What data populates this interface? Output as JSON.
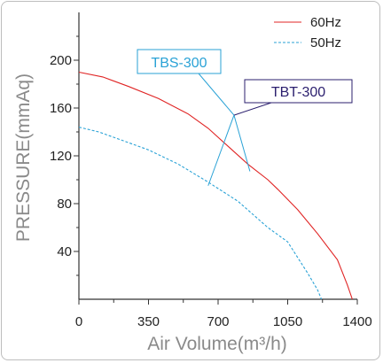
{
  "chart_data": {
    "type": "line",
    "xlabel": "Air Volume(m³/h)",
    "ylabel": "PRESSURE(mmAq)",
    "xlim": [
      0,
      1400
    ],
    "ylim": [
      0,
      240
    ],
    "x_ticks": [
      0,
      350,
      700,
      1050,
      1400
    ],
    "y_ticks": [
      40,
      80,
      120,
      160,
      200
    ],
    "legend_position": "top-right",
    "series": [
      {
        "name": "60Hz",
        "color": "#e02424",
        "style": "solid",
        "points": [
          [
            0,
            190
          ],
          [
            120,
            186
          ],
          [
            250,
            178
          ],
          [
            400,
            168
          ],
          [
            550,
            155
          ],
          [
            650,
            143
          ],
          [
            750,
            128
          ],
          [
            850,
            113
          ],
          [
            950,
            100
          ],
          [
            1000,
            92
          ],
          [
            1100,
            75
          ],
          [
            1200,
            55
          ],
          [
            1300,
            33
          ],
          [
            1350,
            12
          ],
          [
            1375,
            0
          ]
        ]
      },
      {
        "name": "50Hz",
        "color": "#2aa2d6",
        "style": "dashed",
        "points": [
          [
            0,
            144
          ],
          [
            100,
            140
          ],
          [
            200,
            134
          ],
          [
            350,
            125
          ],
          [
            500,
            113
          ],
          [
            650,
            98
          ],
          [
            800,
            82
          ],
          [
            950,
            60
          ],
          [
            1050,
            48
          ],
          [
            1100,
            35
          ],
          [
            1150,
            22
          ],
          [
            1200,
            8
          ],
          [
            1220,
            0
          ]
        ]
      }
    ],
    "callouts": [
      {
        "label": "TBS-300",
        "color": "#2aa2d6",
        "anchor": [
          780,
          154
        ],
        "targets": [
          [
            650,
            95
          ],
          [
            860,
            107
          ]
        ]
      },
      {
        "label": "TBT-300",
        "color": "#2b1f6e",
        "anchor": [
          780,
          154
        ]
      }
    ]
  }
}
